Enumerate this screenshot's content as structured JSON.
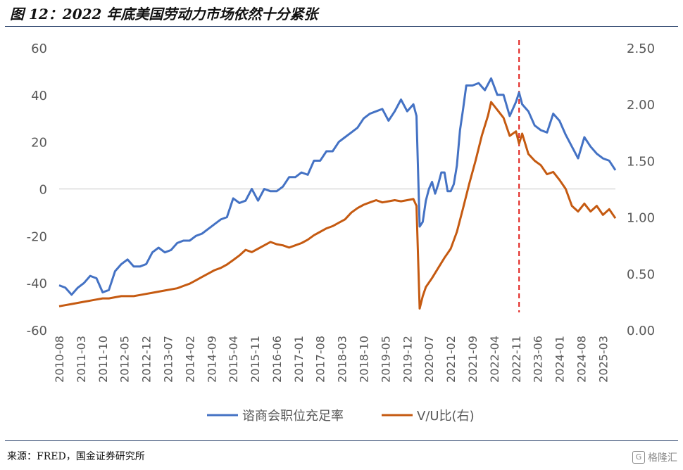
{
  "figure": {
    "title": "图 12：2022 年底美国劳动力市场依然十分紧张",
    "source": "来源：FRED，国金证券研究所",
    "watermark": "格隆汇"
  },
  "chart_data": {
    "type": "line",
    "x_ticks": [
      "2010-08",
      "2011-03",
      "2011-10",
      "2012-05",
      "2012-12",
      "2013-07",
      "2014-02",
      "2014-09",
      "2015-04",
      "2015-11",
      "2016-06",
      "2017-01",
      "2017-08",
      "2018-03",
      "2018-10",
      "2019-05",
      "2019-12",
      "2020-07",
      "2021-02",
      "2021-09",
      "2022-04",
      "2022-11",
      "2023-06",
      "2024-01",
      "2024-08",
      "2025-03"
    ],
    "x_start": "2010-08",
    "x_end": "2025-07",
    "y_left": {
      "range": [
        -60,
        60
      ],
      "ticks": [
        "-60",
        "-40",
        "-20",
        "0",
        "20",
        "40",
        "60"
      ]
    },
    "y_right": {
      "range": [
        0,
        2.5
      ],
      "ticks": [
        "0.00",
        "0.50",
        "1.00",
        "1.50",
        "2.00",
        "2.50"
      ]
    },
    "reference_line": {
      "x": "2022-12",
      "color": "#e0201c",
      "style": "dashed"
    },
    "colors": {
      "series1": "#4472c4",
      "series2": "#c55a11",
      "grid": "#d9d9d9"
    },
    "series": [
      {
        "name": "谘商会职位充足率",
        "axis": "left",
        "points": [
          [
            "2010-08",
            -41
          ],
          [
            "2010-10",
            -42
          ],
          [
            "2010-12",
            -45
          ],
          [
            "2011-02",
            -42
          ],
          [
            "2011-04",
            -40
          ],
          [
            "2011-06",
            -37
          ],
          [
            "2011-08",
            -38
          ],
          [
            "2011-10",
            -44
          ],
          [
            "2011-12",
            -43
          ],
          [
            "2012-02",
            -35
          ],
          [
            "2012-04",
            -32
          ],
          [
            "2012-06",
            -30
          ],
          [
            "2012-08",
            -33
          ],
          [
            "2012-10",
            -33
          ],
          [
            "2012-12",
            -32
          ],
          [
            "2013-02",
            -27
          ],
          [
            "2013-04",
            -25
          ],
          [
            "2013-06",
            -27
          ],
          [
            "2013-08",
            -26
          ],
          [
            "2013-10",
            -23
          ],
          [
            "2013-12",
            -22
          ],
          [
            "2014-02",
            -22
          ],
          [
            "2014-04",
            -20
          ],
          [
            "2014-06",
            -19
          ],
          [
            "2014-08",
            -17
          ],
          [
            "2014-10",
            -15
          ],
          [
            "2014-12",
            -13
          ],
          [
            "2015-02",
            -12
          ],
          [
            "2015-04",
            -4
          ],
          [
            "2015-06",
            -6
          ],
          [
            "2015-08",
            -5
          ],
          [
            "2015-10",
            0
          ],
          [
            "2015-12",
            -5
          ],
          [
            "2016-02",
            0
          ],
          [
            "2016-04",
            -1
          ],
          [
            "2016-06",
            -1
          ],
          [
            "2016-08",
            1
          ],
          [
            "2016-10",
            5
          ],
          [
            "2016-12",
            5
          ],
          [
            "2017-02",
            7
          ],
          [
            "2017-04",
            6
          ],
          [
            "2017-06",
            12
          ],
          [
            "2017-08",
            12
          ],
          [
            "2017-10",
            16
          ],
          [
            "2017-12",
            16
          ],
          [
            "2018-02",
            20
          ],
          [
            "2018-04",
            22
          ],
          [
            "2018-06",
            24
          ],
          [
            "2018-08",
            26
          ],
          [
            "2018-10",
            30
          ],
          [
            "2018-12",
            32
          ],
          [
            "2019-02",
            33
          ],
          [
            "2019-04",
            34
          ],
          [
            "2019-06",
            29
          ],
          [
            "2019-08",
            33
          ],
          [
            "2019-10",
            38
          ],
          [
            "2019-12",
            33
          ],
          [
            "2020-02",
            36
          ],
          [
            "2020-03",
            31
          ],
          [
            "2020-04",
            -16
          ],
          [
            "2020-05",
            -14
          ],
          [
            "2020-06",
            -5
          ],
          [
            "2020-07",
            0
          ],
          [
            "2020-08",
            3
          ],
          [
            "2020-09",
            -2
          ],
          [
            "2020-10",
            2
          ],
          [
            "2020-11",
            7
          ],
          [
            "2020-12",
            7
          ],
          [
            "2021-01",
            -1
          ],
          [
            "2021-02",
            -1
          ],
          [
            "2021-03",
            2
          ],
          [
            "2021-04",
            10
          ],
          [
            "2021-05",
            25
          ],
          [
            "2021-06",
            34
          ],
          [
            "2021-07",
            44
          ],
          [
            "2021-09",
            44
          ],
          [
            "2021-11",
            45
          ],
          [
            "2022-01",
            42
          ],
          [
            "2022-03",
            47
          ],
          [
            "2022-05",
            40
          ],
          [
            "2022-07",
            40
          ],
          [
            "2022-09",
            31
          ],
          [
            "2022-11",
            37
          ],
          [
            "2022-12",
            41
          ],
          [
            "2023-01",
            36
          ],
          [
            "2023-03",
            33
          ],
          [
            "2023-05",
            27
          ],
          [
            "2023-07",
            25
          ],
          [
            "2023-09",
            24
          ],
          [
            "2023-11",
            32
          ],
          [
            "2024-01",
            29
          ],
          [
            "2024-03",
            23
          ],
          [
            "2024-05",
            18
          ],
          [
            "2024-07",
            13
          ],
          [
            "2024-09",
            22
          ],
          [
            "2024-11",
            18
          ],
          [
            "2025-01",
            15
          ],
          [
            "2025-03",
            13
          ],
          [
            "2025-05",
            12
          ],
          [
            "2025-07",
            8
          ]
        ]
      },
      {
        "name": "V/U比(右)",
        "axis": "right",
        "points": [
          [
            "2010-08",
            0.21
          ],
          [
            "2010-10",
            0.22
          ],
          [
            "2010-12",
            0.23
          ],
          [
            "2011-02",
            0.24
          ],
          [
            "2011-04",
            0.25
          ],
          [
            "2011-06",
            0.26
          ],
          [
            "2011-08",
            0.27
          ],
          [
            "2011-10",
            0.28
          ],
          [
            "2011-12",
            0.28
          ],
          [
            "2012-02",
            0.29
          ],
          [
            "2012-04",
            0.3
          ],
          [
            "2012-06",
            0.3
          ],
          [
            "2012-08",
            0.3
          ],
          [
            "2012-10",
            0.31
          ],
          [
            "2012-12",
            0.32
          ],
          [
            "2013-02",
            0.33
          ],
          [
            "2013-04",
            0.34
          ],
          [
            "2013-06",
            0.35
          ],
          [
            "2013-08",
            0.36
          ],
          [
            "2013-10",
            0.37
          ],
          [
            "2013-12",
            0.39
          ],
          [
            "2014-02",
            0.41
          ],
          [
            "2014-04",
            0.44
          ],
          [
            "2014-06",
            0.47
          ],
          [
            "2014-08",
            0.5
          ],
          [
            "2014-10",
            0.53
          ],
          [
            "2014-12",
            0.55
          ],
          [
            "2015-02",
            0.58
          ],
          [
            "2015-04",
            0.62
          ],
          [
            "2015-06",
            0.66
          ],
          [
            "2015-08",
            0.71
          ],
          [
            "2015-10",
            0.69
          ],
          [
            "2015-12",
            0.72
          ],
          [
            "2016-02",
            0.75
          ],
          [
            "2016-04",
            0.78
          ],
          [
            "2016-06",
            0.76
          ],
          [
            "2016-08",
            0.75
          ],
          [
            "2016-10",
            0.73
          ],
          [
            "2016-12",
            0.75
          ],
          [
            "2017-02",
            0.77
          ],
          [
            "2017-04",
            0.8
          ],
          [
            "2017-06",
            0.84
          ],
          [
            "2017-08",
            0.87
          ],
          [
            "2017-10",
            0.9
          ],
          [
            "2017-12",
            0.92
          ],
          [
            "2018-02",
            0.95
          ],
          [
            "2018-04",
            0.98
          ],
          [
            "2018-06",
            1.04
          ],
          [
            "2018-08",
            1.08
          ],
          [
            "2018-10",
            1.11
          ],
          [
            "2018-12",
            1.13
          ],
          [
            "2019-02",
            1.15
          ],
          [
            "2019-04",
            1.13
          ],
          [
            "2019-06",
            1.14
          ],
          [
            "2019-08",
            1.15
          ],
          [
            "2019-10",
            1.14
          ],
          [
            "2019-12",
            1.15
          ],
          [
            "2020-02",
            1.16
          ],
          [
            "2020-03",
            1.1
          ],
          [
            "2020-04",
            0.19
          ],
          [
            "2020-05",
            0.3
          ],
          [
            "2020-06",
            0.38
          ],
          [
            "2020-08",
            0.46
          ],
          [
            "2020-10",
            0.55
          ],
          [
            "2020-12",
            0.64
          ],
          [
            "2021-02",
            0.72
          ],
          [
            "2021-04",
            0.87
          ],
          [
            "2021-06",
            1.08
          ],
          [
            "2021-08",
            1.3
          ],
          [
            "2021-10",
            1.5
          ],
          [
            "2021-12",
            1.72
          ],
          [
            "2022-02",
            1.9
          ],
          [
            "2022-03",
            2.02
          ],
          [
            "2022-05",
            1.95
          ],
          [
            "2022-07",
            1.88
          ],
          [
            "2022-09",
            1.72
          ],
          [
            "2022-11",
            1.76
          ],
          [
            "2022-12",
            1.65
          ],
          [
            "2023-01",
            1.74
          ],
          [
            "2023-03",
            1.56
          ],
          [
            "2023-05",
            1.5
          ],
          [
            "2023-07",
            1.46
          ],
          [
            "2023-09",
            1.38
          ],
          [
            "2023-11",
            1.4
          ],
          [
            "2024-01",
            1.33
          ],
          [
            "2024-03",
            1.25
          ],
          [
            "2024-05",
            1.1
          ],
          [
            "2024-07",
            1.05
          ],
          [
            "2024-09",
            1.12
          ],
          [
            "2024-11",
            1.05
          ],
          [
            "2025-01",
            1.1
          ],
          [
            "2025-03",
            1.02
          ],
          [
            "2025-05",
            1.07
          ],
          [
            "2025-07",
            0.99
          ]
        ]
      }
    ]
  }
}
